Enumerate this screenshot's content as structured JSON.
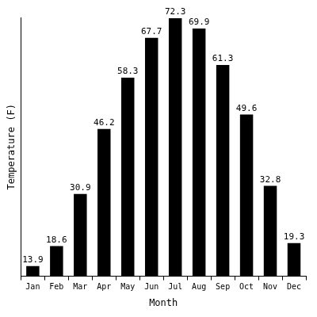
{
  "chart_data": {
    "type": "bar",
    "x_label": "Month",
    "y_label": "Temperature (F)",
    "categories": [
      "Jan",
      "Feb",
      "Mar",
      "Apr",
      "May",
      "Jun",
      "Jul",
      "Aug",
      "Sep",
      "Oct",
      "Nov",
      "Dec"
    ],
    "values": [
      13.9,
      18.6,
      30.9,
      46.2,
      58.3,
      67.7,
      72.3,
      69.9,
      61.3,
      49.6,
      32.8,
      19.3
    ],
    "color": "#000000",
    "ylim": [
      11.5,
      72.5
    ],
    "grid": false,
    "data_labels": true,
    "tick_labels": "x"
  }
}
